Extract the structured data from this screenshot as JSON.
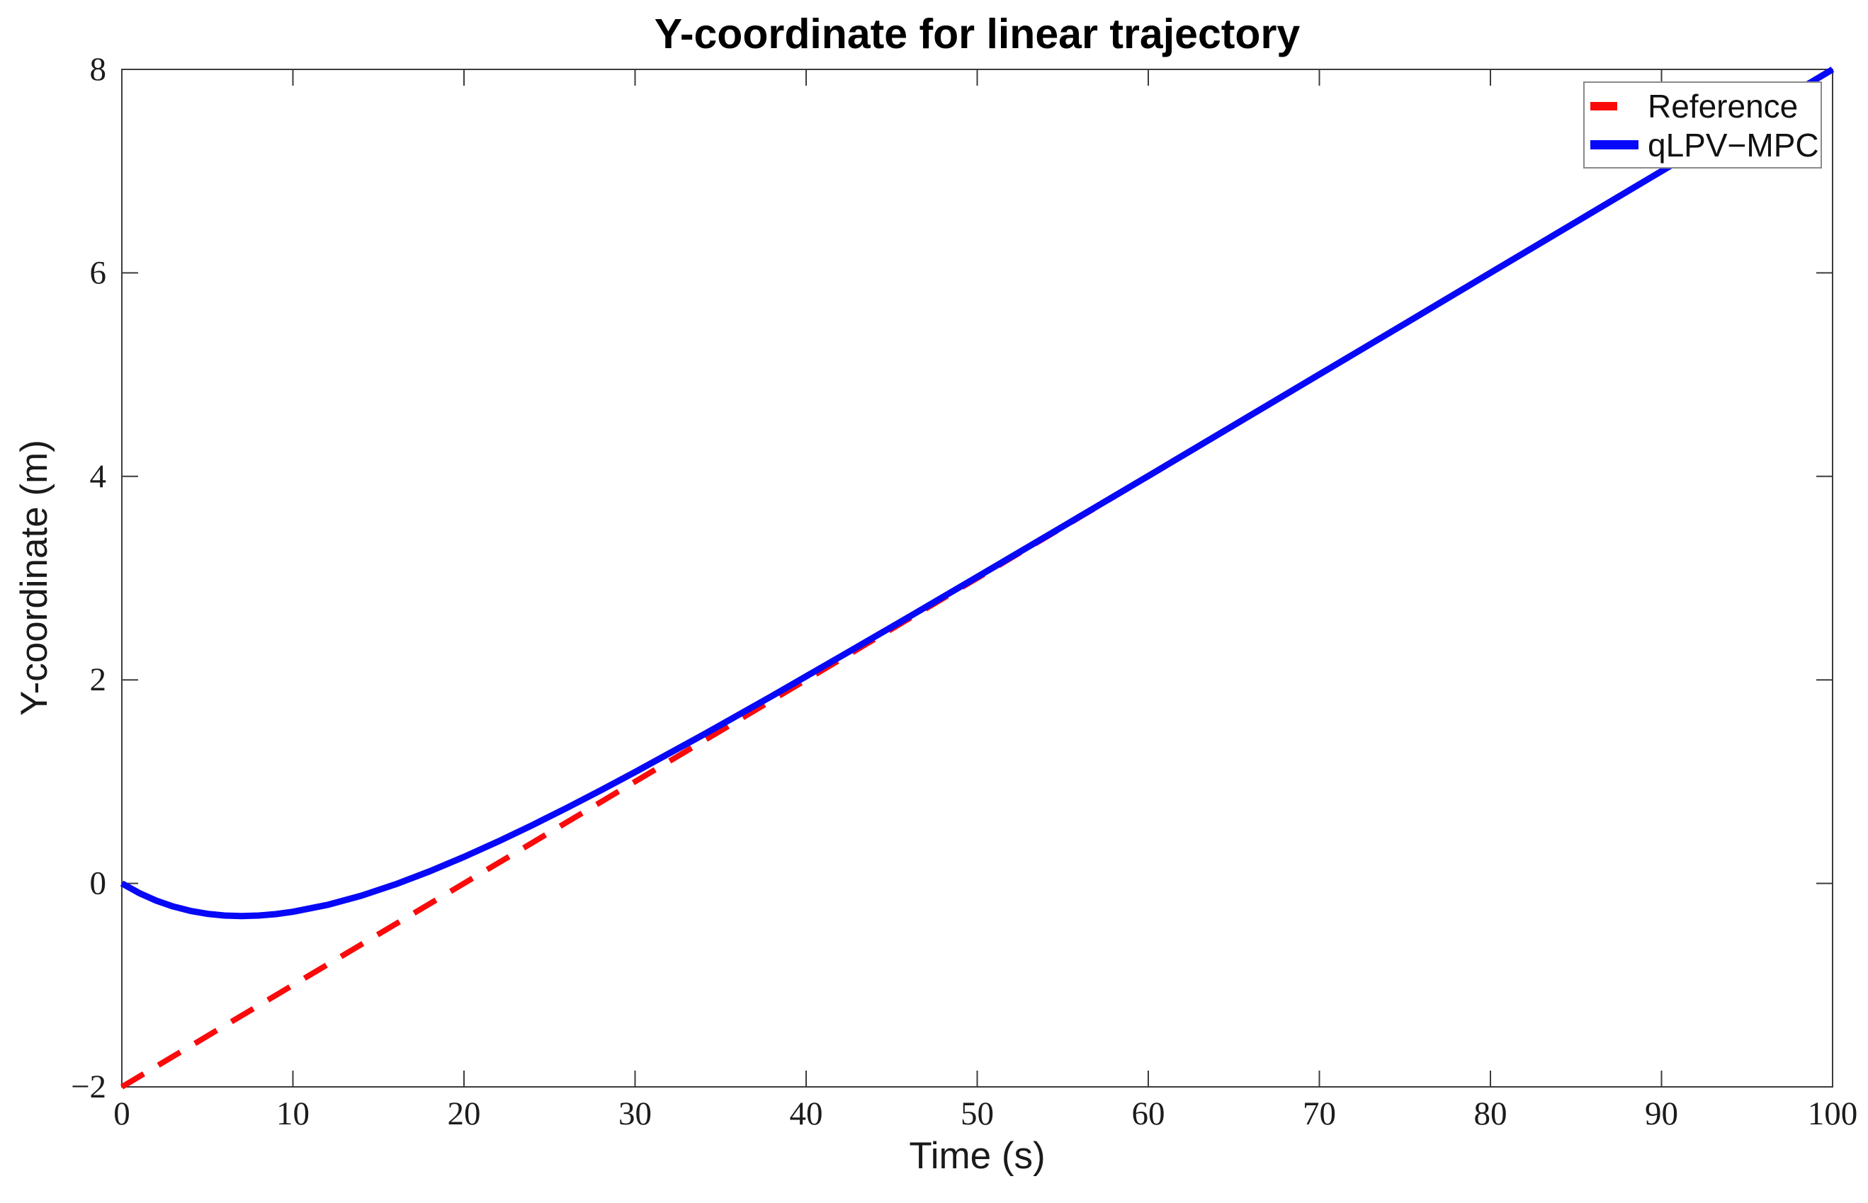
{
  "chart_data": {
    "type": "line",
    "title": "Y-coordinate for linear trajectory",
    "xlabel": "Time (s)",
    "ylabel": "Y-coordinate (m)",
    "xlim": [
      0,
      100
    ],
    "ylim": [
      -2,
      8
    ],
    "xticks": [
      0,
      10,
      20,
      30,
      40,
      50,
      60,
      70,
      80,
      90,
      100
    ],
    "xtick_labels": [
      "0",
      "10",
      "20",
      "30",
      "40",
      "50",
      "60",
      "70",
      "80",
      "90",
      "100"
    ],
    "yticks": [
      8,
      6,
      4,
      2,
      0,
      -2
    ],
    "ytick_labels": [
      "8",
      "6",
      "4",
      "2",
      "0",
      "−2"
    ],
    "grid": false,
    "axis_color": "#3c3c3c",
    "tick_label_color": "#1c1c1c",
    "legend_position": "top-right",
    "legend_border_color": "#8a8a8a",
    "series": [
      {
        "name": "Reference",
        "color": "#fa0a0a",
        "style": "dashed",
        "points": [
          [
            0,
            -2
          ],
          [
            100,
            8
          ]
        ]
      },
      {
        "name": "qLPV−MPC",
        "color": "#0808f8",
        "style": "solid",
        "points": [
          [
            0,
            0.0
          ],
          [
            1,
            -0.094
          ],
          [
            2,
            -0.169
          ],
          [
            3,
            -0.227
          ],
          [
            4,
            -0.27
          ],
          [
            5,
            -0.299
          ],
          [
            6,
            -0.316
          ],
          [
            7,
            -0.321
          ],
          [
            8,
            -0.316
          ],
          [
            9,
            -0.302
          ],
          [
            10,
            -0.279
          ],
          [
            12,
            -0.212
          ],
          [
            14,
            -0.121
          ],
          [
            16,
            -0.009
          ],
          [
            18,
            0.119
          ],
          [
            20,
            0.26
          ],
          [
            22,
            0.412
          ],
          [
            24,
            0.573
          ],
          [
            26,
            0.741
          ],
          [
            28,
            0.915
          ],
          [
            30,
            1.094
          ],
          [
            34,
            1.462
          ],
          [
            38,
            1.841
          ],
          [
            42,
            2.228
          ],
          [
            46,
            2.618
          ],
          [
            50,
            3.012
          ],
          [
            55,
            3.507
          ],
          [
            60,
            4.004
          ],
          [
            65,
            4.503
          ],
          [
            70,
            5.002
          ],
          [
            75,
            5.501
          ],
          [
            80,
            6.001
          ],
          [
            85,
            6.5
          ],
          [
            90,
            7.0
          ],
          [
            95,
            7.5
          ],
          [
            100,
            8.0
          ]
        ]
      }
    ]
  }
}
